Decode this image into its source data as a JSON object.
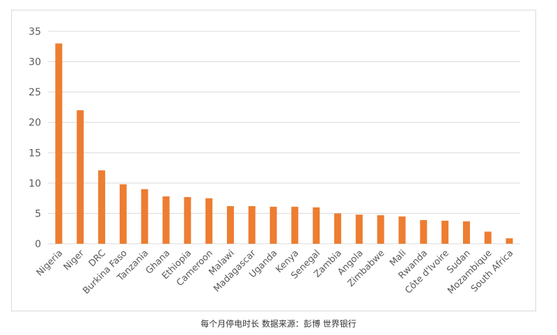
{
  "colors": {
    "bar": "#ED7D31",
    "grid": "#D9D9D9",
    "text": "#595959"
  },
  "caption": "每个月停电时长 数据来源：彭博 世界银行",
  "chart_data": {
    "type": "bar",
    "title": "",
    "xlabel": "",
    "ylabel": "",
    "ylim": [
      0,
      35
    ],
    "yticks": [
      0,
      5,
      10,
      15,
      20,
      25,
      30,
      35
    ],
    "grid": true,
    "legend": "none",
    "categories": [
      "Nigeria",
      "Niger",
      "DRC",
      "Burkina Faso",
      "Tanzania",
      "Ghana",
      "Ethiopia",
      "Cameroon",
      "Malawi",
      "Madagascar",
      "Uganda",
      "Kenya",
      "Senegal",
      "Zambia",
      "Angola",
      "Zimbabwe",
      "Mali",
      "Rwanda",
      "Côte d'Ivoire",
      "Sudan",
      "Mozambique",
      "South Africa"
    ],
    "values": [
      33,
      22,
      12.1,
      9.8,
      9,
      7.8,
      7.7,
      7.5,
      6.2,
      6.2,
      6.1,
      6.1,
      6,
      5,
      4.8,
      4.7,
      4.5,
      3.9,
      3.8,
      3.7,
      2,
      0.9
    ]
  }
}
